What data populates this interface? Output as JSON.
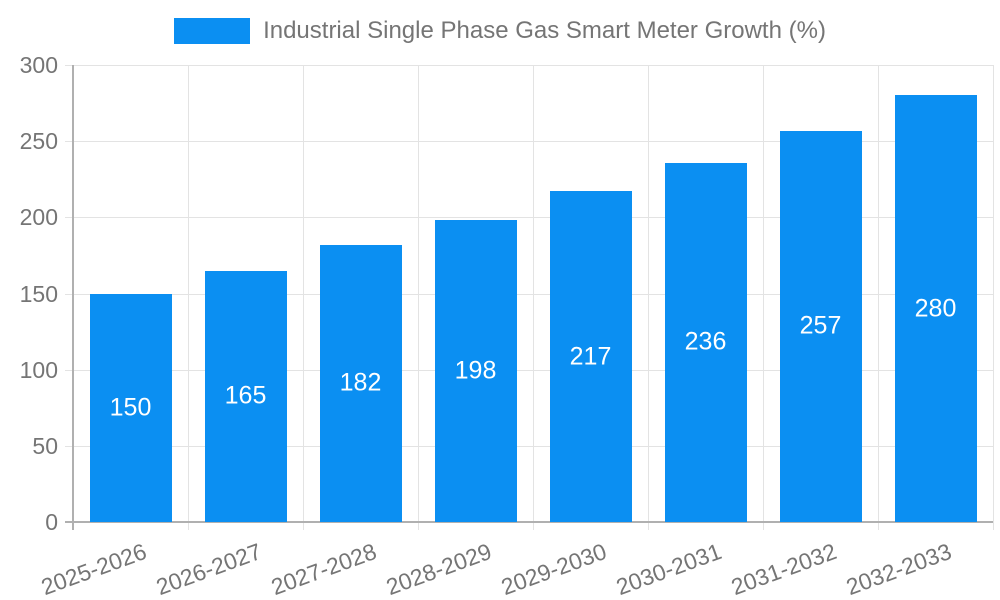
{
  "legend": {
    "label": "Industrial Single Phase Gas Smart Meter Growth (%)"
  },
  "colors": {
    "bar": "#0b8ff2",
    "value_label": "#ffffff",
    "axis_text": "#757575",
    "grid_line": "#e3e3e3",
    "axis_line": "#b0b0b0",
    "background": "#ffffff"
  },
  "chart_data": {
    "type": "bar",
    "title": "",
    "xlabel": "",
    "ylabel": "",
    "categories": [
      "2025-2026",
      "2026-2027",
      "2027-2028",
      "2028-2029",
      "2029-2030",
      "2030-2031",
      "2031-2032",
      "2032-2033"
    ],
    "series": [
      {
        "name": "Industrial Single Phase Gas Smart Meter Growth (%)",
        "values": [
          150,
          165,
          182,
          198,
          217,
          236,
          257,
          280
        ]
      }
    ],
    "value_labels": [
      "150",
      "165",
      "182",
      "198",
      "217",
      "236",
      "257",
      "280"
    ],
    "ylim": [
      0,
      300
    ],
    "yticks": [
      0,
      50,
      100,
      150,
      200,
      250,
      300
    ],
    "grid": true,
    "legend_position": "top"
  }
}
